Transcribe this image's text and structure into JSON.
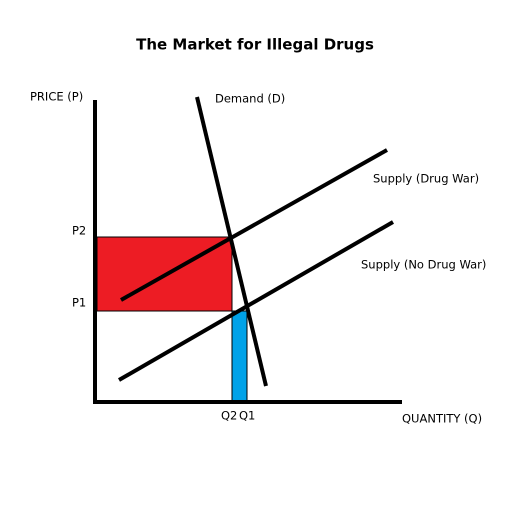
{
  "title": "The Market for Illegal Drugs",
  "axes": {
    "y_label": "PRICE (P)",
    "x_label": "QUANTITY (Q)"
  },
  "price_labels": [
    "P2",
    "P1"
  ],
  "quantity_labels": [
    "Q2",
    "Q1"
  ],
  "curves": {
    "demand": "Demand (D)",
    "supply_drug_war": "Supply (Drug War)",
    "supply_no_drug_war": "Supply (No Drug War)"
  }
}
